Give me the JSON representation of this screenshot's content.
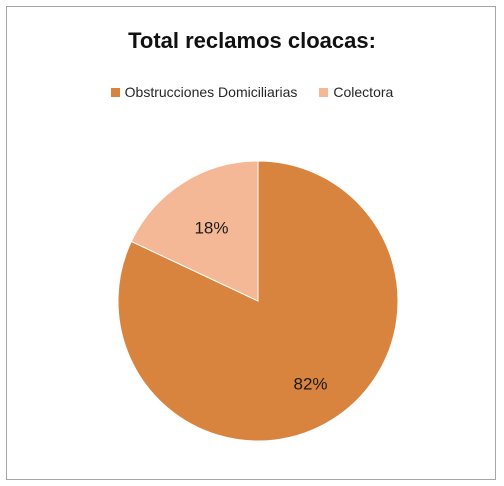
{
  "chart_data": {
    "type": "pie",
    "title": "Total reclamos cloacas:",
    "categories": [
      "Obstrucciones Domiciliarias",
      "Colectora"
    ],
    "values": [
      82,
      18
    ],
    "labels": [
      "82%",
      "18%"
    ],
    "colors": [
      "#d9843e",
      "#f5b896"
    ],
    "legend_position": "top"
  }
}
